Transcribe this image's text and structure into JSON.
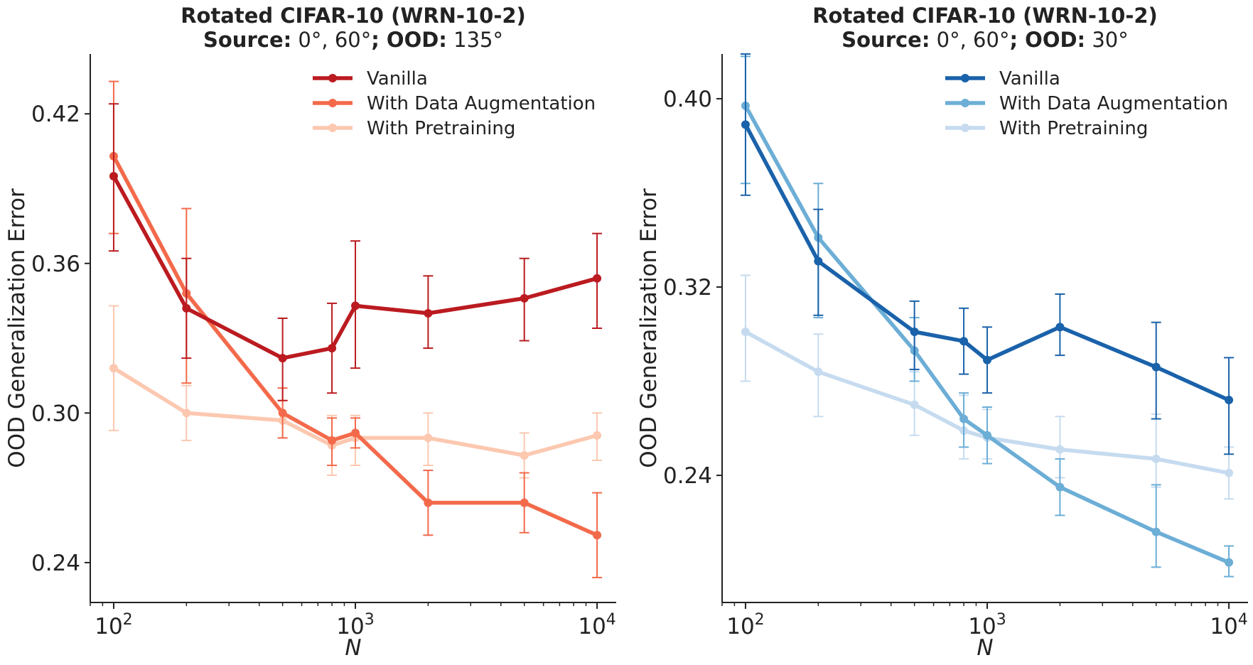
{
  "chart_data": [
    {
      "type": "line",
      "title_line1": "Rotated CIFAR-10 (WRN-10-2)",
      "title_source_label": "Source:",
      "title_source_value": " 0°, 60°",
      "title_ood_label": "; OOD:",
      "title_ood_value": " 135°",
      "xlabel": "N",
      "ylabel": "OOD Generalization Error",
      "xscale": "log",
      "xlim": [
        80,
        12000
      ],
      "ylim": [
        0.224,
        0.444
      ],
      "yticks": [
        0.24,
        0.3,
        0.36,
        0.42
      ],
      "ytick_labels": [
        "0.24",
        "0.30",
        "0.36",
        "0.42"
      ],
      "xticks": [
        {
          "value": 100,
          "base": "10",
          "exp": "2"
        },
        {
          "value": 1000,
          "base": "10",
          "exp": "3"
        },
        {
          "value": 10000,
          "base": "10",
          "exp": "4"
        }
      ],
      "x": [
        100,
        200,
        500,
        800,
        1000,
        2000,
        5000,
        10000
      ],
      "legend_position": "top-right",
      "series": [
        {
          "name": "Vanilla",
          "color": "#bb1b20",
          "values": [
            0.395,
            0.342,
            0.322,
            0.326,
            0.343,
            0.34,
            0.346,
            0.354
          ],
          "err_low": [
            0.365,
            0.322,
            0.305,
            0.308,
            0.318,
            0.326,
            0.329,
            0.334
          ],
          "err_high": [
            0.424,
            0.362,
            0.338,
            0.344,
            0.369,
            0.355,
            0.362,
            0.372
          ]
        },
        {
          "name": "With Data Augmentation",
          "color": "#f36a4b",
          "values": [
            0.403,
            0.348,
            0.3,
            0.289,
            0.292,
            0.264,
            0.264,
            0.251
          ],
          "err_low": [
            0.372,
            0.312,
            0.29,
            0.279,
            0.286,
            0.251,
            0.252,
            0.234
          ],
          "err_high": [
            0.433,
            0.382,
            0.31,
            0.298,
            0.298,
            0.277,
            0.276,
            0.268
          ]
        },
        {
          "name": "With Pretraining",
          "color": "#fcc8b0",
          "values": [
            0.318,
            0.3,
            0.297,
            0.287,
            0.29,
            0.29,
            0.283,
            0.291
          ],
          "err_low": [
            0.293,
            0.289,
            0.29,
            0.275,
            0.279,
            0.279,
            0.274,
            0.281
          ],
          "err_high": [
            0.343,
            0.311,
            0.305,
            0.299,
            0.299,
            0.3,
            0.292,
            0.3
          ]
        }
      ]
    },
    {
      "type": "line",
      "title_line1": "Rotated CIFAR-10 (WRN-10-2)",
      "title_source_label": "Source:",
      "title_source_value": " 0°, 60°",
      "title_ood_label": "; OOD:",
      "title_ood_value": " 30°",
      "xlabel": "N",
      "ylabel": "OOD Generalization Error",
      "xscale": "log",
      "xlim": [
        80,
        12000
      ],
      "ylim": [
        0.186,
        0.419
      ],
      "yticks": [
        0.24,
        0.32,
        0.4
      ],
      "ytick_labels": [
        "0.24",
        "0.32",
        "0.40"
      ],
      "xticks": [
        {
          "value": 100,
          "base": "10",
          "exp": "2"
        },
        {
          "value": 1000,
          "base": "10",
          "exp": "3"
        },
        {
          "value": 10000,
          "base": "10",
          "exp": "4"
        }
      ],
      "x": [
        100,
        200,
        500,
        800,
        1000,
        2000,
        5000,
        10000
      ],
      "legend_position": "top-right",
      "series": [
        {
          "name": "Vanilla",
          "color": "#1a62aa",
          "values": [
            0.389,
            0.331,
            0.301,
            0.297,
            0.289,
            0.303,
            0.286,
            0.272
          ],
          "err_low": [
            0.359,
            0.308,
            0.285,
            0.283,
            0.275,
            0.291,
            0.264,
            0.249
          ],
          "err_high": [
            0.419,
            0.353,
            0.314,
            0.311,
            0.303,
            0.317,
            0.305,
            0.29
          ]
        },
        {
          "name": "With Data Augmentation",
          "color": "#6caed6",
          "values": [
            0.397,
            0.341,
            0.293,
            0.264,
            0.257,
            0.235,
            0.216,
            0.203
          ],
          "err_low": [
            0.364,
            0.307,
            0.28,
            0.252,
            0.245,
            0.223,
            0.201,
            0.197
          ],
          "err_high": [
            0.418,
            0.364,
            0.307,
            0.275,
            0.269,
            0.247,
            0.236,
            0.21
          ]
        },
        {
          "name": "With Pretraining",
          "color": "#c6dbef",
          "values": [
            0.301,
            0.284,
            0.27,
            0.259,
            0.256,
            0.251,
            0.247,
            0.241
          ],
          "err_low": [
            0.28,
            0.265,
            0.257,
            0.247,
            0.247,
            0.239,
            0.235,
            0.23
          ],
          "err_high": [
            0.325,
            0.3,
            0.284,
            0.274,
            0.268,
            0.265,
            0.266,
            0.252
          ]
        }
      ]
    }
  ]
}
